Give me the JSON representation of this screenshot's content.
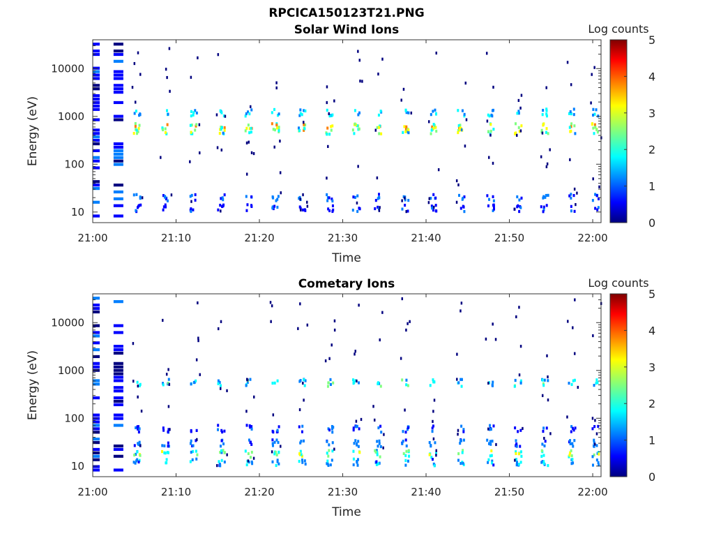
{
  "figure": {
    "title": "RPCICA150123T21.PNG",
    "colorbar_label": "Log counts"
  },
  "colors": {
    "colormap": [
      "#00007f",
      "#0000ff",
      "#007fff",
      "#00ffff",
      "#7fff7f",
      "#ffff00",
      "#ff7f00",
      "#ff0000",
      "#7f0000"
    ]
  },
  "chart_data": [
    {
      "type": "heatmap",
      "title": "Solar Wind Ions",
      "xlabel": "Time",
      "ylabel": "Energy (eV)",
      "y_scale": "log",
      "xlim": [
        "21:00",
        "22:01"
      ],
      "ylim": [
        6,
        40000
      ],
      "x_ticks": [
        "21:00",
        "21:10",
        "21:20",
        "21:30",
        "21:40",
        "21:50",
        "22:00"
      ],
      "y_ticks": [
        "10",
        "100",
        "1000",
        "10000"
      ],
      "colorbar": {
        "label": "Log counts",
        "range": [
          0,
          5
        ],
        "ticks": [
          "0",
          "1",
          "2",
          "3",
          "4",
          "5"
        ]
      },
      "scan_times_min": [
        5.3,
        8.7,
        12.1,
        15.4,
        18.7,
        21.9,
        25.1,
        28.4,
        31.6,
        34.2,
        37.5,
        40.8,
        44.2,
        47.7,
        51.0,
        54.2,
        57.5,
        60.3
      ],
      "bands": [
        {
          "energy_eV": 1200,
          "log_counts": 1.6
        },
        {
          "energy_eV": 600,
          "log_counts": 3.0
        },
        {
          "energy_eV": 500,
          "log_counts": 2.5
        },
        {
          "energy_eV": 20,
          "log_counts": 1.2
        },
        {
          "energy_eV": 12,
          "log_counts": 0.8
        }
      ]
    },
    {
      "type": "heatmap",
      "title": "Cometary Ions",
      "xlabel": "Time",
      "ylabel": "Energy (eV)",
      "y_scale": "log",
      "xlim": [
        "21:00",
        "22:01"
      ],
      "ylim": [
        6,
        40000
      ],
      "x_ticks": [
        "21:00",
        "21:10",
        "21:20",
        "21:30",
        "21:40",
        "21:50",
        "22:00"
      ],
      "y_ticks": [
        "10",
        "100",
        "1000",
        "10000"
      ],
      "colorbar": {
        "label": "Log counts",
        "range": [
          0,
          5
        ],
        "ticks": [
          "0",
          "1",
          "2",
          "3",
          "4",
          "5"
        ]
      },
      "scan_times_min": [
        5.3,
        8.7,
        12.1,
        15.4,
        18.7,
        21.9,
        25.1,
        28.4,
        31.6,
        34.2,
        37.5,
        40.8,
        44.2,
        47.7,
        51.0,
        54.2,
        57.5,
        60.3
      ],
      "bands": [
        {
          "energy_eV": 550,
          "log_counts": 1.8
        },
        {
          "energy_eV": 60,
          "log_counts": 0.9
        },
        {
          "energy_eV": 30,
          "log_counts": 1.2
        },
        {
          "energy_eV": 18,
          "log_counts": 2.3
        },
        {
          "energy_eV": 12,
          "log_counts": 1.5
        }
      ]
    }
  ]
}
